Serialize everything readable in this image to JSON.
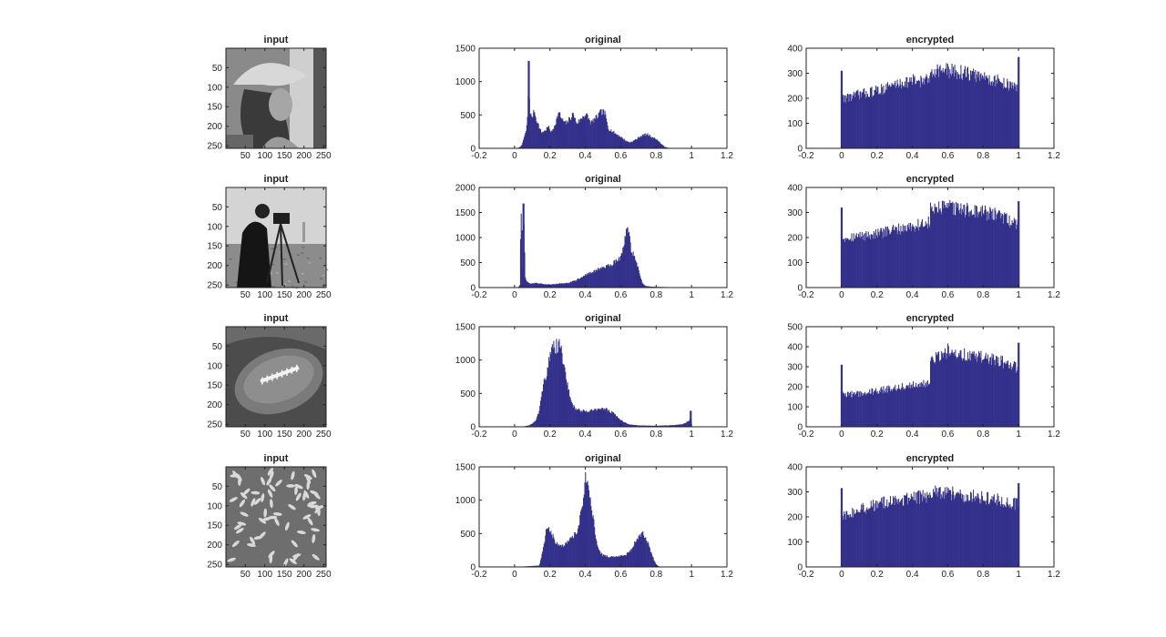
{
  "colors": {
    "bar": "#33308a",
    "axis": "#222222"
  },
  "image_panel": {
    "title": "input",
    "yticks": [
      50,
      100,
      150,
      200,
      250
    ],
    "xticks": [
      50,
      100,
      150,
      200,
      250
    ],
    "xlim": [
      0.5,
      256.5
    ],
    "ylim": [
      0.5,
      256.5
    ]
  },
  "rows": [
    {
      "image_icon": "lena-photo"
    },
    {
      "image_icon": "cameraman-photo"
    },
    {
      "image_icon": "football-photo"
    },
    {
      "image_icon": "rice-photo"
    }
  ],
  "chart_data": [
    {
      "type": "bar",
      "title": "original",
      "row": 0,
      "xlim": [
        -0.2,
        1.2
      ],
      "ylim": [
        0,
        1500
      ],
      "yticks": [
        0,
        500,
        1000,
        1500
      ],
      "xticks": [
        "-0.2",
        "0",
        "0.2",
        "0.4",
        "0.6",
        "0.8",
        "1",
        "1.2"
      ],
      "x": [
        0.0,
        0.02,
        0.04,
        0.055,
        0.065,
        0.075,
        0.08,
        0.085,
        0.095,
        0.11,
        0.13,
        0.15,
        0.17,
        0.19,
        0.21,
        0.23,
        0.25,
        0.27,
        0.29,
        0.31,
        0.33,
        0.35,
        0.37,
        0.39,
        0.41,
        0.43,
        0.45,
        0.47,
        0.49,
        0.51,
        0.53,
        0.55,
        0.57,
        0.59,
        0.61,
        0.63,
        0.65,
        0.67,
        0.69,
        0.71,
        0.73,
        0.75,
        0.77,
        0.79,
        0.81,
        0.83,
        0.85,
        0.87,
        0.89,
        1.0
      ],
      "values": [
        0,
        5,
        40,
        180,
        250,
        560,
        1310,
        600,
        450,
        540,
        380,
        240,
        260,
        320,
        240,
        380,
        530,
        420,
        370,
        440,
        510,
        380,
        420,
        500,
        490,
        380,
        430,
        480,
        550,
        520,
        300,
        260,
        220,
        190,
        150,
        110,
        90,
        110,
        140,
        180,
        200,
        210,
        180,
        150,
        120,
        60,
        20,
        5,
        0,
        0
      ]
    },
    {
      "type": "bar",
      "title": "encrypted",
      "row": 0,
      "xlim": [
        -0.2,
        1.2
      ],
      "ylim": [
        0,
        400
      ],
      "yticks": [
        0,
        100,
        200,
        300,
        400
      ],
      "xticks": [
        "-0.2",
        "0",
        "0.2",
        "0.4",
        "0.6",
        "0.8",
        "1",
        "1.2"
      ],
      "x": [
        0.0,
        0.004,
        0.1,
        0.2,
        0.3,
        0.4,
        0.499,
        0.5,
        0.6,
        0.7,
        0.8,
        0.9,
        0.995,
        1.0
      ],
      "values": [
        310,
        200,
        215,
        230,
        255,
        270,
        270,
        315,
        310,
        300,
        285,
        265,
        240,
        365
      ]
    },
    {
      "type": "bar",
      "title": "original",
      "row": 1,
      "xlim": [
        -0.2,
        1.2
      ],
      "ylim": [
        0,
        2000
      ],
      "yticks": [
        0,
        500,
        1000,
        1500,
        2000
      ],
      "xticks": [
        "-0.2",
        "0",
        "0.2",
        "0.4",
        "0.6",
        "0.8",
        "1",
        "1.2"
      ],
      "x": [
        0.0,
        0.02,
        0.03,
        0.035,
        0.04,
        0.045,
        0.05,
        0.055,
        0.06,
        0.07,
        0.09,
        0.12,
        0.16,
        0.2,
        0.25,
        0.3,
        0.35,
        0.4,
        0.45,
        0.5,
        0.55,
        0.58,
        0.6,
        0.62,
        0.63,
        0.64,
        0.65,
        0.66,
        0.68,
        0.7,
        0.72,
        0.74,
        0.78,
        0.85,
        0.95,
        1.0
      ],
      "values": [
        0,
        5,
        50,
        1450,
        1480,
        300,
        1680,
        900,
        200,
        110,
        80,
        90,
        70,
        60,
        80,
        90,
        150,
        250,
        330,
        400,
        470,
        560,
        610,
        860,
        1180,
        1200,
        980,
        720,
        600,
        350,
        100,
        30,
        15,
        10,
        5,
        0
      ]
    },
    {
      "type": "bar",
      "title": "encrypted",
      "row": 1,
      "xlim": [
        -0.2,
        1.2
      ],
      "ylim": [
        0,
        400
      ],
      "yticks": [
        0,
        100,
        200,
        300,
        400
      ],
      "xticks": [
        "-0.2",
        "0",
        "0.2",
        "0.4",
        "0.6",
        "0.8",
        "1",
        "1.2"
      ],
      "x": [
        0.0,
        0.004,
        0.1,
        0.2,
        0.3,
        0.4,
        0.499,
        0.5,
        0.6,
        0.7,
        0.8,
        0.9,
        0.995,
        1.0
      ],
      "values": [
        320,
        200,
        205,
        215,
        230,
        245,
        260,
        310,
        320,
        310,
        300,
        285,
        250,
        345
      ]
    },
    {
      "type": "bar",
      "title": "original",
      "row": 2,
      "xlim": [
        -0.2,
        1.2
      ],
      "ylim": [
        0,
        1500
      ],
      "yticks": [
        0,
        500,
        1000,
        1500
      ],
      "xticks": [
        "-0.2",
        "0",
        "0.2",
        "0.4",
        "0.6",
        "0.8",
        "1",
        "1.2"
      ],
      "x": [
        0.0,
        0.05,
        0.08,
        0.1,
        0.12,
        0.14,
        0.16,
        0.18,
        0.2,
        0.22,
        0.24,
        0.26,
        0.28,
        0.3,
        0.32,
        0.34,
        0.36,
        0.4,
        0.44,
        0.48,
        0.52,
        0.56,
        0.6,
        0.64,
        0.7,
        0.8,
        0.9,
        0.95,
        0.98,
        0.99,
        0.995,
        1.0
      ],
      "values": [
        0,
        5,
        20,
        50,
        100,
        250,
        600,
        800,
        1050,
        1200,
        1220,
        1180,
        950,
        600,
        350,
        280,
        250,
        230,
        250,
        270,
        260,
        200,
        100,
        40,
        20,
        15,
        25,
        40,
        80,
        110,
        240,
        0
      ]
    },
    {
      "type": "bar",
      "title": "encrypted",
      "row": 2,
      "xlim": [
        -0.2,
        1.2
      ],
      "ylim": [
        0,
        500
      ],
      "yticks": [
        0,
        100,
        200,
        300,
        400,
        500
      ],
      "xticks": [
        "-0.2",
        "0",
        "0.2",
        "0.4",
        "0.6",
        "0.8",
        "1",
        "1.2"
      ],
      "x": [
        0.0,
        0.004,
        0.1,
        0.2,
        0.3,
        0.4,
        0.499,
        0.5,
        0.6,
        0.7,
        0.8,
        0.9,
        0.995,
        1.0
      ],
      "values": [
        310,
        160,
        165,
        180,
        195,
        210,
        220,
        320,
        380,
        360,
        345,
        325,
        295,
        420
      ]
    },
    {
      "type": "bar",
      "title": "original",
      "row": 3,
      "xlim": [
        -0.2,
        1.2
      ],
      "ylim": [
        0,
        1500
      ],
      "yticks": [
        0,
        500,
        1000,
        1500
      ],
      "xticks": [
        "-0.2",
        "0",
        "0.2",
        "0.4",
        "0.6",
        "0.8",
        "1",
        "1.2"
      ],
      "x": [
        0.0,
        0.14,
        0.16,
        0.18,
        0.2,
        0.22,
        0.24,
        0.26,
        0.28,
        0.3,
        0.32,
        0.34,
        0.36,
        0.38,
        0.4,
        0.41,
        0.42,
        0.44,
        0.46,
        0.48,
        0.5,
        0.54,
        0.58,
        0.62,
        0.66,
        0.68,
        0.7,
        0.72,
        0.74,
        0.76,
        0.78,
        0.8,
        0.82,
        1.0
      ],
      "values": [
        0,
        20,
        250,
        550,
        560,
        430,
        360,
        330,
        330,
        380,
        420,
        480,
        600,
        900,
        1320,
        1400,
        1200,
        800,
        400,
        220,
        170,
        150,
        160,
        170,
        250,
        380,
        460,
        500,
        440,
        300,
        150,
        30,
        0,
        0
      ]
    },
    {
      "type": "bar",
      "title": "encrypted",
      "row": 3,
      "xlim": [
        -0.2,
        1.2
      ],
      "ylim": [
        0,
        400
      ],
      "yticks": [
        0,
        100,
        200,
        300,
        400
      ],
      "xticks": [
        "-0.2",
        "0",
        "0.2",
        "0.4",
        "0.6",
        "0.8",
        "1",
        "1.2"
      ],
      "x": [
        0.0,
        0.004,
        0.1,
        0.2,
        0.3,
        0.4,
        0.499,
        0.5,
        0.6,
        0.7,
        0.8,
        0.9,
        0.995,
        1.0
      ],
      "values": [
        315,
        200,
        230,
        250,
        265,
        275,
        285,
        300,
        295,
        285,
        275,
        265,
        250,
        335
      ]
    }
  ]
}
